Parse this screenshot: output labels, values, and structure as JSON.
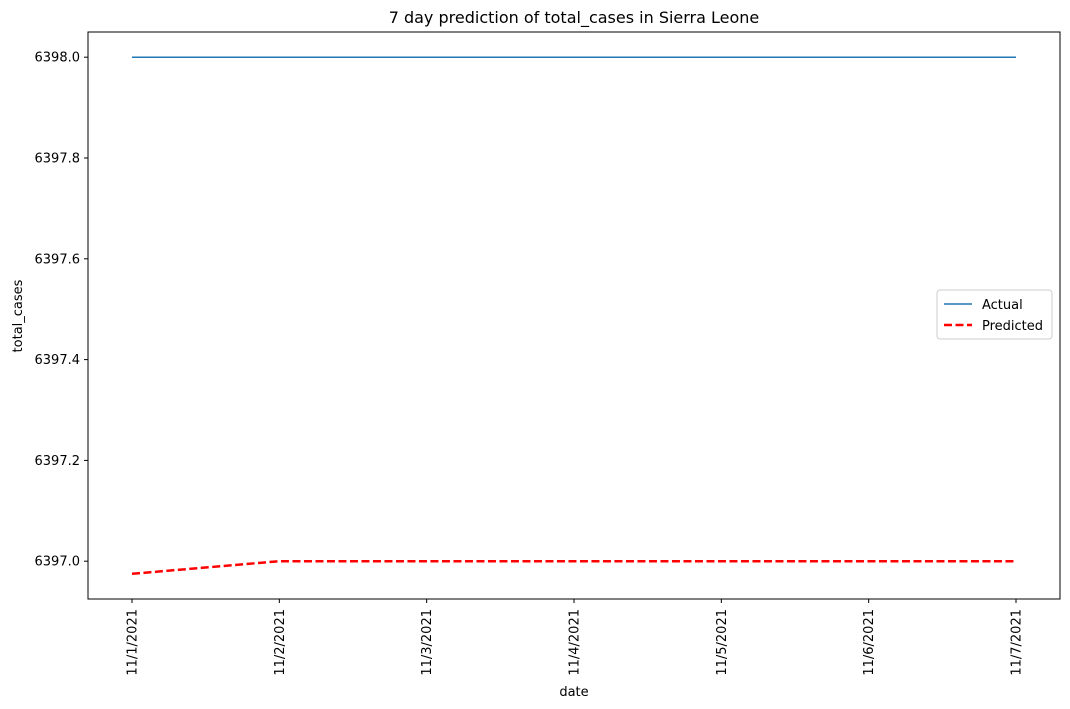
{
  "chart_data": {
    "type": "line",
    "title": "7 day prediction of total_cases in Sierra Leone",
    "xlabel": "date",
    "ylabel": "total_cases",
    "categories": [
      "11/1/2021",
      "11/2/2021",
      "11/3/2021",
      "11/4/2021",
      "11/5/2021",
      "11/6/2021",
      "11/7/2021"
    ],
    "ylim": [
      6396.925,
      6398.05
    ],
    "yticks": [
      "6397.0",
      "6397.2",
      "6397.4",
      "6397.6",
      "6397.8",
      "6398.0"
    ],
    "grid": false,
    "legend_position": "center-right",
    "series": [
      {
        "name": "Actual",
        "color": "#1f77b4",
        "style": "solid",
        "values": [
          6398,
          6398,
          6398,
          6398,
          6398,
          6398,
          6398
        ]
      },
      {
        "name": "Predicted",
        "color": "#ff0000",
        "style": "dashed",
        "values": [
          6396.975,
          6397,
          6397,
          6397,
          6397,
          6397,
          6397
        ]
      }
    ]
  }
}
